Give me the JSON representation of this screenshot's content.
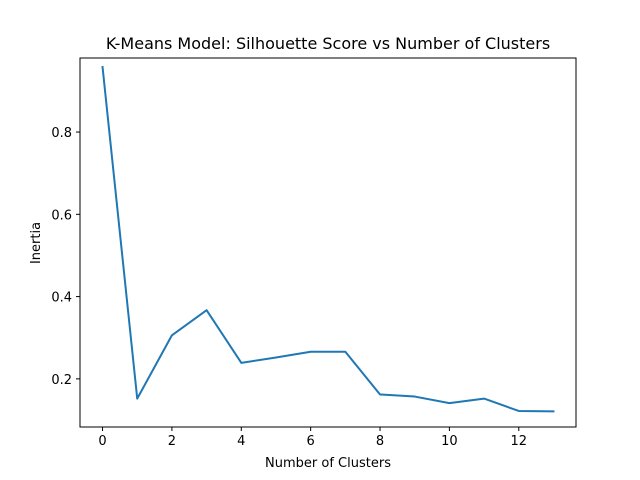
{
  "chart_data": {
    "type": "line",
    "title": "K-Means Model: Silhouette Score vs Number of Clusters",
    "xlabel": "Number of Clusters",
    "ylabel": "Inertia",
    "xlim": [
      -0.65,
      13.65
    ],
    "ylim": [
      0.083,
      0.98
    ],
    "xticks": [
      0,
      2,
      4,
      6,
      8,
      10,
      12
    ],
    "xtick_labels": [
      "0",
      "2",
      "4",
      "6",
      "8",
      "10",
      "12"
    ],
    "yticks": [
      0.2,
      0.4,
      0.6,
      0.8
    ],
    "ytick_labels": [
      "0.2",
      "0.4",
      "0.6",
      "0.8"
    ],
    "grid": false,
    "series": [
      {
        "color": "#1f77b4",
        "x": [
          0,
          1,
          2,
          3,
          4,
          5,
          6,
          7,
          8,
          9,
          10,
          11,
          12,
          13
        ],
        "y": [
          0.958,
          0.152,
          0.306,
          0.367,
          0.239,
          0.252,
          0.266,
          0.266,
          0.162,
          0.157,
          0.141,
          0.152,
          0.122,
          0.121
        ]
      }
    ]
  }
}
